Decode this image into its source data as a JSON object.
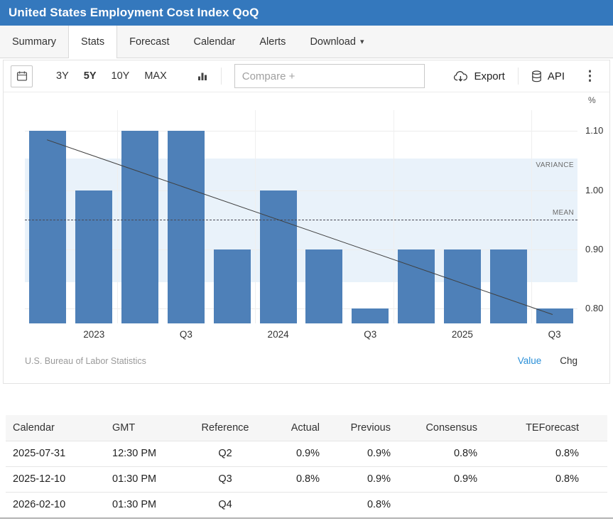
{
  "colors": {
    "header_bg": "#3478bd",
    "bar": "#4e80b8",
    "variance_band": "#e9f2fa",
    "value_link": "#2a8fd8"
  },
  "header": {
    "title": "United States Employment Cost Index QoQ"
  },
  "tabs": [
    {
      "label": "Summary"
    },
    {
      "label": "Stats"
    },
    {
      "label": "Forecast"
    },
    {
      "label": "Calendar"
    },
    {
      "label": "Alerts"
    },
    {
      "label": "Download"
    }
  ],
  "toolbar": {
    "ranges": [
      "3Y",
      "5Y",
      "10Y",
      "MAX"
    ],
    "compare_placeholder": "Compare +",
    "export_label": "Export",
    "api_label": "API"
  },
  "chart_data": {
    "type": "bar",
    "title": "United States Employment Cost Index QoQ",
    "ylabel": "%",
    "categories": [
      "2022-Q4",
      "2023-Q1",
      "2023-Q2",
      "2023-Q3",
      "2023-Q4",
      "2024-Q1",
      "2024-Q2",
      "2024-Q3",
      "2024-Q4",
      "2025-Q1",
      "2025-Q2",
      "2025-Q3"
    ],
    "values": [
      1.1,
      1.0,
      1.1,
      1.1,
      0.9,
      1.0,
      0.9,
      0.8,
      0.9,
      0.9,
      0.9,
      0.8
    ],
    "x_tick_labels": [
      "2023",
      "Q3",
      "2024",
      "Q3",
      "2025",
      "Q3"
    ],
    "yticks": [
      "1.10",
      "1.00",
      "0.90",
      "0.80"
    ],
    "ylim": [
      0.775,
      1.135
    ],
    "grid": true,
    "mean": 0.95,
    "mean_label": "MEAN",
    "variance_band": [
      0.845,
      1.053
    ],
    "variance_label": "VARIANCE",
    "trendline": {
      "x1_frac": 0.04,
      "start_value": 1.085,
      "x2_frac": 0.955,
      "end_value": 0.79
    },
    "legend_position": "bottom-right",
    "legend": {
      "value": "Value",
      "chg": "Chg"
    },
    "source": "U.S. Bureau of Labor Statistics"
  },
  "table": {
    "columns": [
      "Calendar",
      "GMT",
      "Reference",
      "Actual",
      "Previous",
      "Consensus",
      "TEForecast"
    ],
    "rows": [
      [
        "2025-07-31",
        "12:30 PM",
        "Q2",
        "0.9%",
        "0.9%",
        "0.8%",
        "0.8%"
      ],
      [
        "2025-12-10",
        "01:30 PM",
        "Q3",
        "0.8%",
        "0.9%",
        "0.9%",
        "0.8%"
      ],
      [
        "2026-02-10",
        "01:30 PM",
        "Q4",
        "",
        "0.8%",
        "",
        ""
      ]
    ]
  }
}
